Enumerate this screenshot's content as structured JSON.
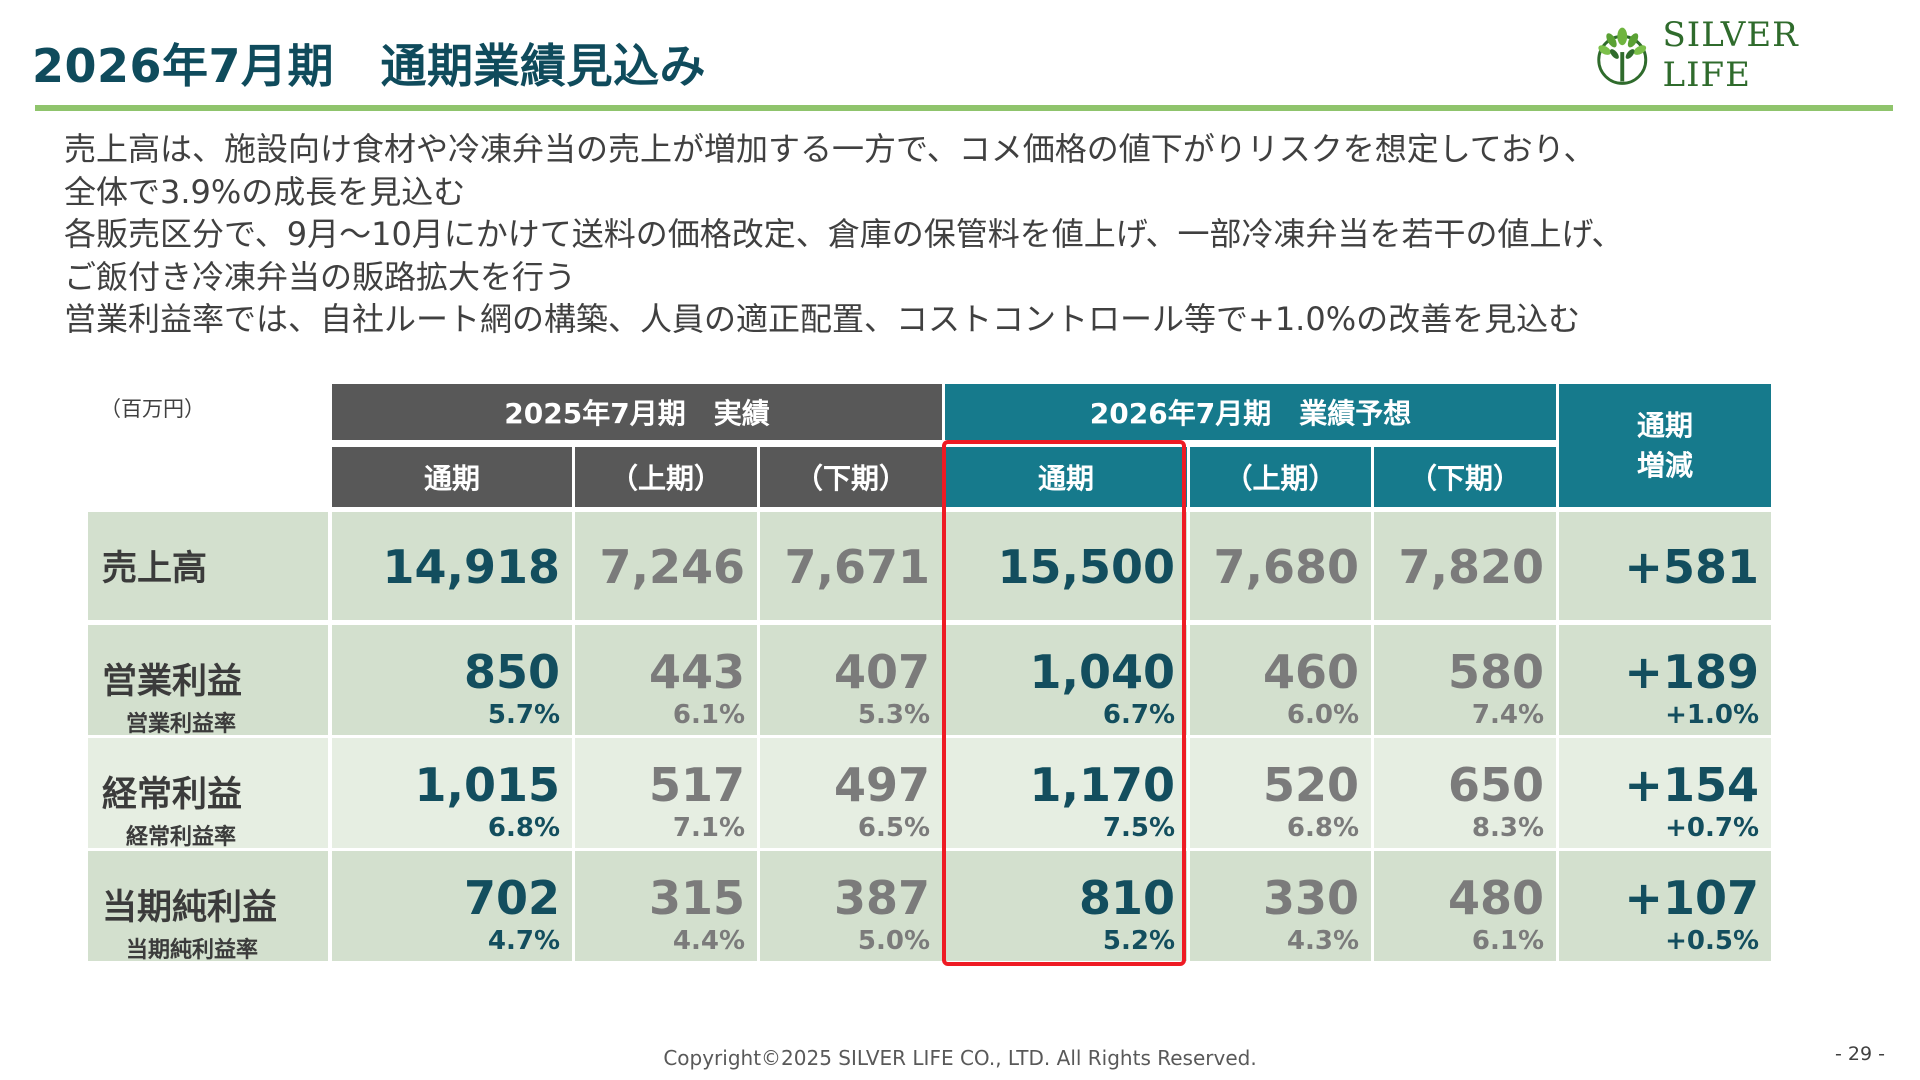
{
  "title": "2026年7月期　通期業績見込み",
  "logo": {
    "text": "SILVER LIFE",
    "icon": "tree-leaf-logo-icon"
  },
  "bullets": [
    "売上高は、施設向け食材や冷凍弁当の売上が増加する一方で、コメ価格の値下がりリスクを想定しており、",
    "全体で3.9%の成長を見込む",
    "各販売区分で、9月～10月にかけて送料の価格改定、倉庫の保管料を値上げ、一部冷凍弁当を若干の値上げ、",
    "ご飯付き冷凍弁当の販路拡大を行う",
    "営業利益率では、自社ルート網の構築、人員の適正配置、コストコントロール等で+1.0%の改善を見込む"
  ],
  "table": {
    "unit": "（百万円）",
    "group_headers": {
      "actual": "2025年7月期　実績",
      "forecast": "2026年7月期　業績予想",
      "change_line1": "通期",
      "change_line2": "増減"
    },
    "sub_headers": [
      "通期",
      "（上期）",
      "（下期）",
      "通期",
      "（上期）",
      "（下期）"
    ],
    "rows": [
      {
        "label": "売上高",
        "sublabel": "",
        "values": [
          "14,918",
          "7,246",
          "7,671",
          "15,500",
          "7,680",
          "7,820",
          "+581"
        ],
        "rates": [
          "",
          "",
          "",
          "",
          "",
          "",
          ""
        ]
      },
      {
        "label": "営業利益",
        "sublabel": "営業利益率",
        "values": [
          "850",
          "443",
          "407",
          "1,040",
          "460",
          "580",
          "+189"
        ],
        "rates": [
          "5.7%",
          "6.1%",
          "5.3%",
          "6.7%",
          "6.0%",
          "7.4%",
          "+1.0%"
        ]
      },
      {
        "label": "経常利益",
        "sublabel": "経常利益率",
        "values": [
          "1,015",
          "517",
          "497",
          "1,170",
          "520",
          "650",
          "+154"
        ],
        "rates": [
          "6.8%",
          "7.1%",
          "6.5%",
          "7.5%",
          "6.8%",
          "8.3%",
          "+0.7%"
        ]
      },
      {
        "label": "当期純利益",
        "sublabel": "当期純利益率",
        "values": [
          "702",
          "315",
          "387",
          "810",
          "330",
          "480",
          "+107"
        ],
        "rates": [
          "4.7%",
          "4.4%",
          "5.0%",
          "5.2%",
          "4.3%",
          "6.1%",
          "+0.5%"
        ]
      }
    ]
  },
  "colors": {
    "title": "#0f4b5c",
    "header_gray": "#585858",
    "header_teal": "#167a8c",
    "row_green": "#d3e0ce",
    "row_light": "#e6eee2",
    "highlight_border": "#ee1b24",
    "rule_green": "#8fc46c"
  },
  "footer": "Copyright©2025 SILVER LIFE CO., LTD.  All Rights Reserved.",
  "page_number": "- 29 -"
}
